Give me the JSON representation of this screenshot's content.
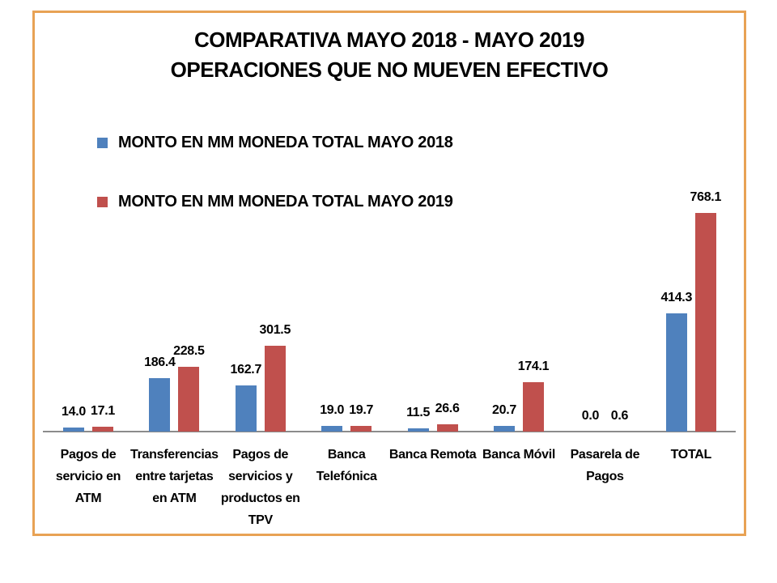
{
  "page": {
    "background": "#ffffff"
  },
  "colors": {
    "frame_border": "#e8a254",
    "axis_line": "#8c8c8c",
    "text": "#000000",
    "series_2018": "#4f81bd",
    "series_2019": "#c0504d"
  },
  "chart_data": {
    "type": "bar",
    "title": "COMPARATIVA MAYO 2018 - MAYO 2019",
    "subtitle": "OPERACIONES QUE NO MUEVEN EFECTIVO",
    "legend_position": "top-left",
    "grid": false,
    "y_axis_visible": false,
    "x_axis_visible": true,
    "ylim": [
      0,
      800
    ],
    "value_label_format": "0.0",
    "categories": [
      "Pagos de servicio en ATM",
      "Transferencias entre tarjetas en ATM",
      "Pagos de servicios y productos en TPV",
      "Banca Telefónica",
      "Banca Remota",
      "Banca Móvil",
      "Pasarela de Pagos",
      "TOTAL"
    ],
    "categories_display": [
      "Pagos de\nservicio en\nATM",
      "Transferencias\nentre tarjetas\nen ATM",
      "Pagos de\nservicios y\nproductos en\nTPV",
      "Banca\nTelefónica",
      "Banca Remota",
      "Banca Móvil",
      "Pasarela de\nPagos",
      "TOTAL"
    ],
    "series": [
      {
        "name": "MONTO EN MM MONEDA TOTAL MAYO 2018",
        "color": "#4f81bd",
        "values": [
          14.0,
          186.4,
          162.7,
          19.0,
          11.5,
          20.7,
          0.0,
          414.3
        ]
      },
      {
        "name": "MONTO EN MM MONEDA TOTAL MAYO 2019",
        "color": "#c0504d",
        "values": [
          17.1,
          228.5,
          301.5,
          19.7,
          26.6,
          174.1,
          0.6,
          768.1
        ]
      }
    ]
  }
}
